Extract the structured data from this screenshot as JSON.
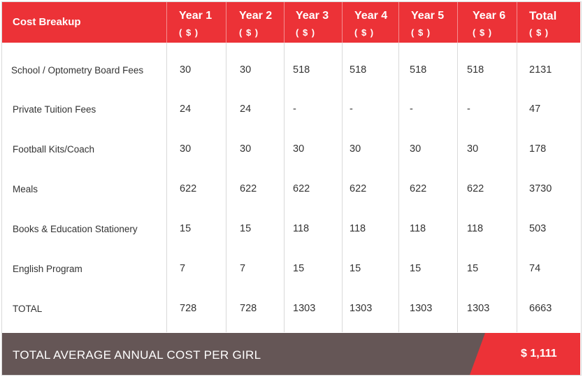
{
  "header": {
    "first": "Cost Breakup",
    "unit": "( $ )",
    "columns": [
      "Year 1",
      "Year 2",
      "Year 3",
      "Year 4",
      "Year 5",
      "Year 6",
      "Total"
    ]
  },
  "rows": [
    {
      "label": "School / Optometry Board Fees",
      "values": [
        "30",
        "30",
        "518",
        "518",
        "518",
        "518",
        "2131"
      ]
    },
    {
      "label": "Private Tuition Fees",
      "values": [
        "24",
        "24",
        "-",
        "-",
        "-",
        "-",
        "47"
      ]
    },
    {
      "label": "Football Kits/Coach",
      "values": [
        "30",
        "30",
        "30",
        "30",
        "30",
        "30",
        "178"
      ]
    },
    {
      "label": "Meals",
      "values": [
        "622",
        "622",
        "622",
        "622",
        "622",
        "622",
        "3730"
      ]
    },
    {
      "label": "Books & Education Stationery",
      "values": [
        "15",
        "15",
        "118",
        "118",
        "118",
        "118",
        "503"
      ]
    },
    {
      "label": "English Program",
      "values": [
        "7",
        "7",
        "15",
        "15",
        "15",
        "15",
        "74"
      ]
    },
    {
      "label": "TOTAL",
      "values": [
        "728",
        "728",
        "1303",
        "1303",
        "1303",
        "1303",
        "6663"
      ]
    }
  ],
  "footer": {
    "label": "TOTAL AVERAGE ANNUAL COST PER GIRL",
    "value": "$ 1,111"
  },
  "colors": {
    "accent_red": "#ec3237",
    "footer_gray": "#655656",
    "text": "#333333"
  }
}
